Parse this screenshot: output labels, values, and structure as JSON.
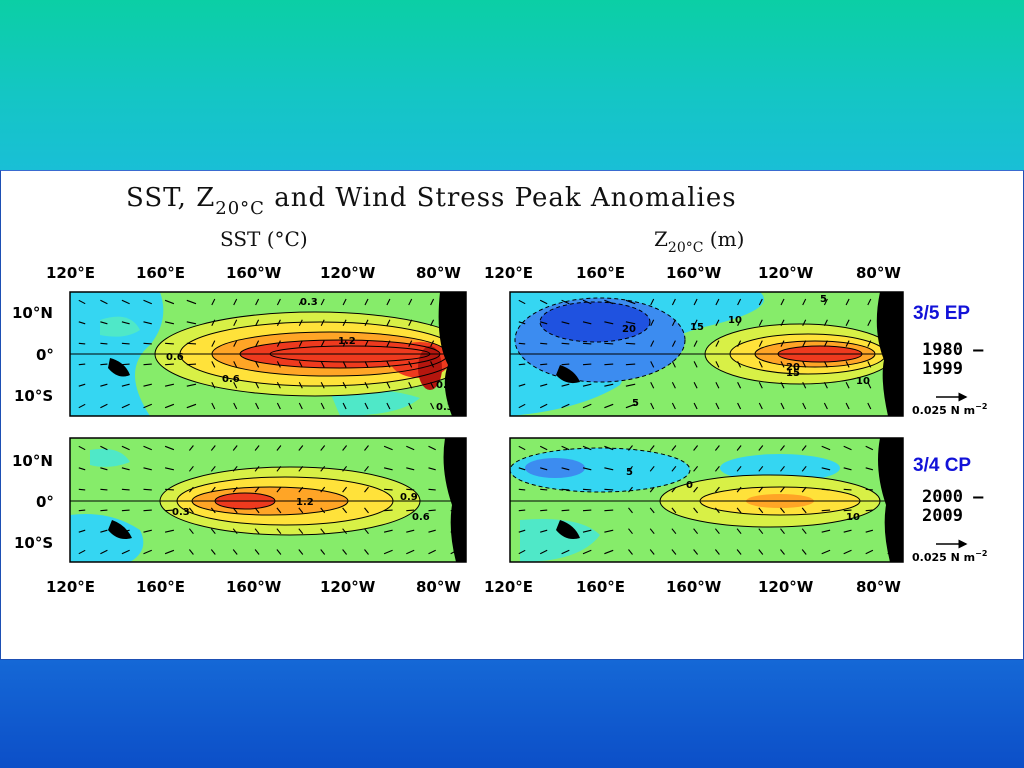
{
  "slide": {
    "colors": {
      "top_band": "#0fcfb0",
      "bottom_band": "#0c52c8",
      "panel_border": "#1d4fb4"
    }
  },
  "figure": {
    "title_prefix": "SST, Z",
    "title_sub": "20°C",
    "title_suffix": " and Wind Stress Peak Anomalies",
    "left_title": "SST (°C)",
    "right_title_prefix": "Z",
    "right_title_sub": "20°C",
    "right_title_suffix": " (m)",
    "lon_labels": [
      "120°E",
      "160°E",
      "160°W",
      "120°W",
      "80°W"
    ],
    "lat_labels": [
      "10°N",
      "0°",
      "10°S"
    ],
    "rows": [
      {
        "case_label": "3/5 EP",
        "case_color": "#1212d8",
        "years_line1": "1980 –",
        "years_line2": "1999",
        "sst_contours": [
          "0.3",
          "1.2",
          "0.6",
          "0.9",
          "0.6",
          "0.3"
        ],
        "z20_contours": [
          "20",
          "15",
          "10",
          "5",
          "15",
          "20",
          "10",
          "5"
        ]
      },
      {
        "case_label": "3/4 CP",
        "case_color": "#1212d8",
        "years_line1": "2000 –",
        "years_line2": "2009",
        "sst_contours": [
          "0.3",
          "1.2",
          "0.9",
          "0.6"
        ],
        "z20_contours": [
          "5",
          "0",
          "10"
        ]
      }
    ],
    "scale_label": "0.025 N m",
    "scale_exp": "−2",
    "palette": {
      "deep_blue": "#1f52e0",
      "blue": "#3c8cf0",
      "cyan": "#35d6f2",
      "aqua": "#4fe8c8",
      "green": "#86ec6a",
      "yellow_green": "#d8f046",
      "yellow": "#ffe23a",
      "orange": "#ffa526",
      "red": "#ee3a1e",
      "dark_red": "#b5160e",
      "land": "#000000"
    }
  }
}
